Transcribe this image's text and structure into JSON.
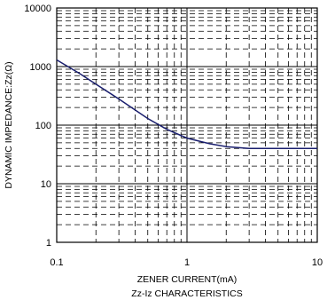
{
  "chart_data": {
    "type": "line",
    "title": "Zz-Iz CHARACTERISTICS",
    "xlabel": "ZENER CURRENT(mA)",
    "ylabel": "DYNAMIC IMPEDANCE:Zz(Ω)",
    "x_scale": "log",
    "y_scale": "log",
    "xlim": [
      0.1,
      10
    ],
    "ylim": [
      1,
      10000
    ],
    "x_ticks": [
      "0.1",
      "1",
      "10"
    ],
    "y_ticks": [
      "1",
      "10",
      "100",
      "1000",
      "10000"
    ],
    "grid": true,
    "series": [
      {
        "x": [
          0.1,
          0.15,
          0.2,
          0.3,
          0.5,
          0.7,
          1.0,
          1.5,
          2.0,
          3.0,
          5.0,
          7.0,
          10.0
        ],
        "y": [
          1300,
          760,
          500,
          280,
          130,
          85,
          60,
          48,
          43,
          40,
          40,
          40,
          40
        ]
      }
    ],
    "colors": {
      "curve": "#1a1f6e",
      "grid": "#000000"
    }
  }
}
